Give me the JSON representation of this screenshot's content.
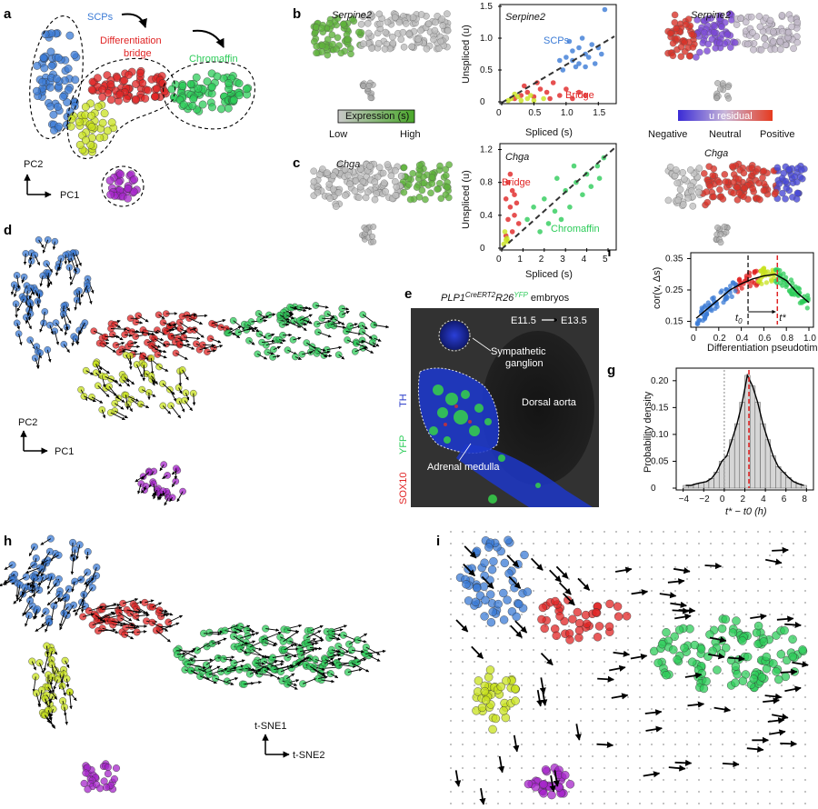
{
  "panels": {
    "a": {
      "letter": "a",
      "labels": {
        "scps": "SCPs",
        "bridge_line1": "Differentiation",
        "bridge_line2": "bridge",
        "chromaffin": "Chromaffin"
      },
      "axes": {
        "pc1": "PC1",
        "pc2": "PC2"
      }
    },
    "b": {
      "letter": "b",
      "gene": "Serpine2",
      "expr_legend": {
        "title": "Expression (s)",
        "low": "Low",
        "high": "High"
      },
      "scatter_labels": {
        "scps": "SCPs",
        "bridge": "Bridge"
      },
      "residual_legend": {
        "title": "u residual",
        "negative": "Negative",
        "neutral": "Neutral",
        "positive": "Positive"
      }
    },
    "c": {
      "letter": "c",
      "gene": "Chga",
      "scatter_labels": {
        "bridge": "Bridge",
        "chromaffin": "Chromaffin"
      }
    },
    "d": {
      "letter": "d",
      "axes": {
        "pc1": "PC1",
        "pc2": "PC2"
      }
    },
    "e": {
      "letter": "e",
      "title_prefix": "PLP1",
      "title_sup1": "CreERT2",
      "title_mid": "R26",
      "title_sup2": "YFP",
      "title_suffix": " embryos",
      "stage_from": "E11.5",
      "stage_to": "E13.5",
      "labels": {
        "ganglion_line1": "Sympathetic",
        "ganglion_line2": "ganglion",
        "aorta": "Dorsal aorta",
        "medulla": "Adrenal medulla"
      },
      "channels": {
        "th": "TH",
        "yfp": "YFP",
        "sox10": "SOX10"
      }
    },
    "f": {
      "letter": "f",
      "t0": "t",
      "t0_sub": "0",
      "tstar": "t*"
    },
    "g": {
      "letter": "g"
    },
    "h": {
      "letter": "h",
      "axes": {
        "tsne1": "t-SNE1",
        "tsne2": "t-SNE2"
      }
    },
    "i": {
      "letter": "i"
    }
  },
  "colors": {
    "scp": "#3b7bd6",
    "bridge": "#e02424",
    "chromaffin": "#2ecc5a",
    "yellow": "#c8e21e",
    "purple": "#a626c9",
    "grey": "#b9b9b9"
  },
  "chart_data": [
    {
      "id": "b-serpine2-phase",
      "type": "scatter",
      "title": "Serpine2",
      "xlabel": "Spliced (s)",
      "ylabel": "Unspliced (u)",
      "xlim": [
        0,
        1.75
      ],
      "ylim": [
        0,
        1.5
      ],
      "xticks": [
        "0",
        "0.5",
        "1.0",
        "1.5"
      ],
      "yticks": [
        "0",
        "0.5",
        "1.0",
        "1.5"
      ],
      "series": [
        {
          "name": "SCPs",
          "points": [
            [
              0.9,
              0.65
            ],
            [
              1.0,
              0.7
            ],
            [
              1.1,
              0.8
            ],
            [
              1.2,
              0.6
            ],
            [
              1.3,
              0.75
            ],
            [
              1.4,
              0.9
            ],
            [
              1.5,
              0.85
            ],
            [
              1.05,
              0.95
            ],
            [
              1.15,
              0.55
            ],
            [
              1.25,
              1.0
            ],
            [
              1.35,
              0.7
            ],
            [
              1.45,
              0.6
            ],
            [
              0.95,
              0.5
            ],
            [
              1.55,
              0.75
            ],
            [
              1.6,
              1.45
            ],
            [
              1.2,
              0.85
            ],
            [
              1.3,
              0.55
            ],
            [
              1.1,
              0.65
            ]
          ]
        },
        {
          "name": "Bridge",
          "points": [
            [
              0.2,
              0.05
            ],
            [
              0.3,
              0.1
            ],
            [
              0.4,
              0.15
            ],
            [
              0.5,
              0.08
            ],
            [
              0.6,
              0.2
            ],
            [
              0.7,
              0.15
            ],
            [
              0.8,
              0.3
            ],
            [
              0.9,
              0.1
            ],
            [
              1.0,
              0.2
            ],
            [
              1.1,
              0.05
            ],
            [
              1.2,
              0.15
            ],
            [
              1.3,
              0.1
            ],
            [
              0.35,
              0.25
            ],
            [
              0.55,
              0.3
            ],
            [
              0.75,
              0.05
            ]
          ]
        },
        {
          "name": "",
          "points": [
            [
              0.1,
              0.02
            ],
            [
              0.15,
              0.05
            ],
            [
              0.25,
              0.08
            ],
            [
              0.3,
              0.02
            ],
            [
              0.45,
              0.1
            ],
            [
              0.5,
              0.02
            ],
            [
              0.65,
              0.05
            ],
            [
              0.2,
              0.12
            ],
            [
              0.4,
              0.05
            ]
          ]
        }
      ]
    },
    {
      "id": "c-chga-phase",
      "type": "scatter",
      "title": "Chga",
      "xlabel": "Spliced (s)",
      "ylabel": "Unspliced (u)",
      "xlim": [
        0,
        5.3
      ],
      "ylim": [
        0,
        1.25
      ],
      "xticks": [
        "0",
        "1",
        "2",
        "3",
        "4",
        "5"
      ],
      "yticks": [
        "0",
        "0.4",
        "0.8",
        "1.2"
      ],
      "series": [
        {
          "name": "Bridge",
          "points": [
            [
              0.2,
              0.6
            ],
            [
              0.3,
              0.8
            ],
            [
              0.4,
              0.5
            ],
            [
              0.5,
              0.7
            ],
            [
              0.6,
              0.4
            ],
            [
              0.7,
              0.55
            ],
            [
              0.8,
              0.3
            ],
            [
              0.3,
              0.35
            ],
            [
              0.5,
              0.2
            ],
            [
              0.2,
              0.15
            ],
            [
              0.4,
              0.9
            ],
            [
              0.6,
              0.65
            ]
          ]
        },
        {
          "name": "Chromaffin",
          "points": [
            [
              1.5,
              0.5
            ],
            [
              2.0,
              0.6
            ],
            [
              2.5,
              0.45
            ],
            [
              3.0,
              0.7
            ],
            [
              3.5,
              0.8
            ],
            [
              4.0,
              0.9
            ],
            [
              4.5,
              1.0
            ],
            [
              4.8,
              1.1
            ],
            [
              2.2,
              0.3
            ],
            [
              2.8,
              0.35
            ],
            [
              3.2,
              0.5
            ],
            [
              3.8,
              0.65
            ],
            [
              4.2,
              0.75
            ],
            [
              1.8,
              0.2
            ],
            [
              2.6,
              0.85
            ],
            [
              3.4,
              1.0
            ],
            [
              4.6,
              0.85
            ],
            [
              1.2,
              0.35
            ]
          ]
        },
        {
          "name": "",
          "points": [
            [
              0.1,
              0.05
            ],
            [
              0.2,
              0.1
            ],
            [
              0.3,
              0.08
            ],
            [
              0.15,
              0.2
            ],
            [
              0.25,
              0.12
            ]
          ]
        }
      ]
    },
    {
      "id": "f-correlation",
      "type": "scatter",
      "xlabel": "Differentiation pseudotime",
      "ylabel": "cor(v, Δs)",
      "xlim": [
        0,
        1.0
      ],
      "ylim": [
        0.14,
        0.36
      ],
      "xticks": [
        "0",
        "0.2",
        "0.4",
        "0.6",
        "0.8",
        "1.0"
      ],
      "yticks": [
        "0.15",
        "0.25",
        "0.35"
      ],
      "t0": 0.46,
      "tstar": 0.72,
      "trend": [
        [
          0.0,
          0.16
        ],
        [
          0.1,
          0.19
        ],
        [
          0.2,
          0.22
        ],
        [
          0.3,
          0.25
        ],
        [
          0.4,
          0.27
        ],
        [
          0.5,
          0.285
        ],
        [
          0.6,
          0.295
        ],
        [
          0.7,
          0.3
        ],
        [
          0.8,
          0.28
        ],
        [
          0.9,
          0.24
        ],
        [
          1.0,
          0.21
        ]
      ]
    },
    {
      "id": "g-histogram",
      "type": "bar",
      "xlabel": "t* − t0 (h)",
      "ylabel": "Probability density",
      "xlim": [
        -4.5,
        8.5
      ],
      "ylim": [
        0,
        0.22
      ],
      "xticks": [
        "−4",
        "−2",
        "0",
        "2",
        "4",
        "6",
        "8"
      ],
      "yticks": [
        "0",
        "0.05",
        "0.10",
        "0.15",
        "0.20"
      ],
      "bins": [
        -4,
        -3.5,
        -3,
        -2.5,
        -2,
        -1.5,
        -1,
        -0.5,
        0,
        0.5,
        1,
        1.5,
        2,
        2.5,
        3,
        3.5,
        4,
        4.5,
        5,
        5.5,
        6,
        6.5,
        7,
        7.5
      ],
      "values": [
        0.005,
        0.005,
        0.008,
        0.01,
        0.012,
        0.018,
        0.03,
        0.05,
        0.06,
        0.09,
        0.12,
        0.16,
        0.21,
        0.19,
        0.16,
        0.12,
        0.09,
        0.06,
        0.04,
        0.03,
        0.02,
        0.012,
        0.008,
        0.005
      ],
      "median": 2.4
    }
  ]
}
